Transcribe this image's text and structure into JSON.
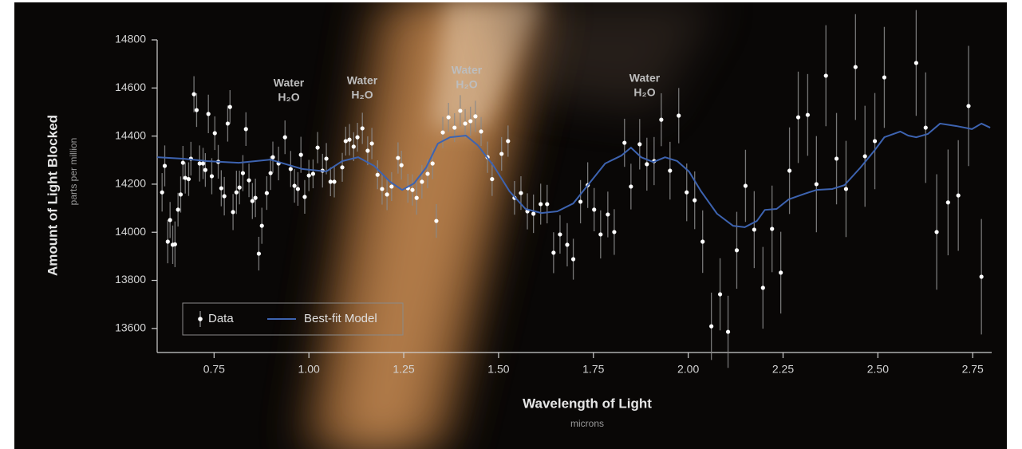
{
  "chart_data": {
    "type": "scatter",
    "y_label": "Amount of Light Blocked",
    "y_sublabel": "parts per million",
    "x_label": "Wavelength of Light",
    "x_sublabel": "microns",
    "xlim": [
      0.6,
      2.8
    ],
    "ylim": [
      13500,
      14800
    ],
    "xticks": [
      0.75,
      {
        "value": 1.0,
        "label": "1.00"
      },
      1.25,
      {
        "value": 1.5,
        "label": "1.50"
      },
      1.75,
      {
        "value": 2.0,
        "label": "2.00"
      },
      2.25,
      {
        "value": 2.5,
        "label": "2.50"
      },
      2.75
    ],
    "yticks": [
      13600,
      13800,
      14000,
      14200,
      14400,
      14600,
      14800
    ],
    "legend": "lower left",
    "annotations": [
      {
        "text": "Water",
        "formula": "H₂O"
      },
      {
        "text": "Water",
        "formula": "H₂O"
      },
      {
        "text": "Water",
        "formula": "H₂O"
      },
      {
        "text": "Water",
        "formula": "H₂O"
      }
    ],
    "series": [
      {
        "name": "Data",
        "color": "#ffffff",
        "error_color": "#8a8a8a",
        "x": [
          0.613,
          0.62,
          0.628,
          0.634,
          0.641,
          0.647,
          0.655,
          0.662,
          0.668,
          0.674,
          0.683,
          0.689,
          0.697,
          0.704,
          0.712,
          0.721,
          0.727,
          0.735,
          0.744,
          0.752,
          0.761,
          0.769,
          0.777,
          0.786,
          0.792,
          0.8,
          0.809,
          0.817,
          0.826,
          0.834,
          0.842,
          0.851,
          0.859,
          0.868,
          0.876,
          0.889,
          0.899,
          0.905,
          0.92,
          0.937,
          0.952,
          0.962,
          0.971,
          0.979,
          0.989,
          1.0,
          1.011,
          1.023,
          1.036,
          1.046,
          1.057,
          1.067,
          1.088,
          1.097,
          1.107,
          1.118,
          1.128,
          1.141,
          1.155,
          1.166,
          1.181,
          1.193,
          1.206,
          1.218,
          1.235,
          1.244,
          1.261,
          1.273,
          1.284,
          1.298,
          1.313,
          1.326,
          1.336,
          1.353,
          1.368,
          1.384,
          1.399,
          1.412,
          1.426,
          1.439,
          1.454,
          1.471,
          1.483,
          1.508,
          1.525,
          1.542,
          1.559,
          1.576,
          1.592,
          1.611,
          1.628,
          1.645,
          1.662,
          1.681,
          1.697,
          1.716,
          1.735,
          1.752,
          1.769,
          1.788,
          1.805,
          1.832,
          1.849,
          1.872,
          1.891,
          1.91,
          1.929,
          1.952,
          1.975,
          1.996,
          2.017,
          2.038,
          2.061,
          2.084,
          2.105,
          2.128,
          2.151,
          2.174,
          2.197,
          2.221,
          2.244,
          2.267,
          2.29,
          2.315,
          2.338,
          2.363,
          2.391,
          2.416,
          2.441,
          2.466,
          2.492,
          2.517,
          2.601,
          2.626,
          2.655,
          2.685,
          2.712,
          2.739,
          2.773
        ],
        "values": [
          14166,
          14276,
          13961,
          14051,
          13948,
          13950,
          14094,
          14157,
          14289,
          14226,
          14221,
          14306,
          14574,
          14508,
          14286,
          14286,
          14259,
          14492,
          14233,
          14412,
          14293,
          14183,
          14150,
          14452,
          14521,
          14084,
          14166,
          14186,
          14246,
          14429,
          14216,
          14130,
          14143,
          13911,
          14027,
          14163,
          14246,
          14312,
          14286,
          14395,
          14263,
          14193,
          14180,
          14322,
          14147,
          14236,
          14243,
          14352,
          14256,
          14306,
          14210,
          14210,
          14270,
          14379,
          14385,
          14356,
          14395,
          14432,
          14339,
          14369,
          14239,
          14180,
          14157,
          14190,
          14309,
          14279,
          14183,
          14176,
          14143,
          14210,
          14243,
          14286,
          14047,
          14415,
          14478,
          14435,
          14505,
          14452,
          14462,
          14482,
          14419,
          14312,
          14221,
          14326,
          14379,
          14143,
          14163,
          14087,
          14077,
          14117,
          14117,
          13915,
          13991,
          13948,
          13888,
          14127,
          14196,
          14094,
          13991,
          14074,
          14001,
          14372,
          14190,
          14366,
          14283,
          14296,
          14468,
          14256,
          14485,
          14166,
          14133,
          13961,
          13609,
          13742,
          13586,
          13925,
          14193,
          14011,
          13769,
          14014,
          13832,
          14256,
          14478,
          14488,
          14200,
          14651,
          14306,
          14180,
          14687,
          14316,
          14379,
          14644,
          14704,
          14435,
          14001,
          14124,
          14153,
          14525,
          13815
        ],
        "errors": [
          80,
          85,
          90,
          75,
          80,
          95,
          70,
          75,
          70,
          65,
          70,
          70,
          75,
          70,
          75,
          65,
          70,
          80,
          75,
          70,
          70,
          75,
          80,
          75,
          70,
          75,
          90,
          70,
          75,
          70,
          70,
          75,
          80,
          70,
          75,
          70,
          70,
          65,
          70,
          70,
          75,
          70,
          70,
          75,
          70,
          65,
          60,
          65,
          70,
          65,
          60,
          65,
          60,
          60,
          65,
          60,
          60,
          65,
          60,
          65,
          60,
          65,
          65,
          60,
          65,
          60,
          60,
          65,
          70,
          70,
          60,
          65,
          70,
          65,
          60,
          60,
          65,
          60,
          60,
          65,
          60,
          65,
          70,
          70,
          65,
          70,
          70,
          75,
          80,
          85,
          80,
          85,
          80,
          90,
          85,
          90,
          95,
          90,
          100,
          95,
          95,
          100,
          95,
          105,
          110,
          100,
          110,
          120,
          115,
          120,
          120,
          130,
          140,
          150,
          150,
          160,
          150,
          160,
          170,
          180,
          170,
          180,
          190,
          170,
          200,
          210,
          190,
          200,
          220,
          210,
          200,
          210,
          220,
          230,
          240,
          220,
          230,
          250,
          240
        ]
      },
      {
        "name": "Best-fit Model",
        "type": "line",
        "color": "#3d63b0",
        "x": [
          0.6,
          0.668,
          0.731,
          0.815,
          0.899,
          0.983,
          1.046,
          1.088,
          1.13,
          1.172,
          1.214,
          1.246,
          1.277,
          1.309,
          1.34,
          1.372,
          1.414,
          1.445,
          1.487,
          1.529,
          1.571,
          1.613,
          1.655,
          1.697,
          1.739,
          1.781,
          1.824,
          1.849,
          1.876,
          1.908,
          1.939,
          1.971,
          2.002,
          2.034,
          2.076,
          2.118,
          2.149,
          2.181,
          2.202,
          2.233,
          2.265,
          2.307,
          2.338,
          2.38,
          2.412,
          2.454,
          2.492,
          2.517,
          2.559,
          2.58,
          2.601,
          2.632,
          2.664,
          2.706,
          2.748,
          2.773,
          2.796
        ],
        "values": [
          14312,
          14306,
          14296,
          14289,
          14302,
          14263,
          14253,
          14296,
          14312,
          14276,
          14210,
          14176,
          14203,
          14269,
          14369,
          14395,
          14402,
          14362,
          14276,
          14170,
          14097,
          14080,
          14087,
          14120,
          14203,
          14286,
          14319,
          14352,
          14312,
          14292,
          14312,
          14296,
          14253,
          14170,
          14077,
          14027,
          14021,
          14047,
          14093,
          14097,
          14137,
          14160,
          14176,
          14180,
          14196,
          14269,
          14342,
          14395,
          14419,
          14402,
          14395,
          14409,
          14452,
          14442,
          14429,
          14452,
          14435
        ]
      }
    ]
  }
}
